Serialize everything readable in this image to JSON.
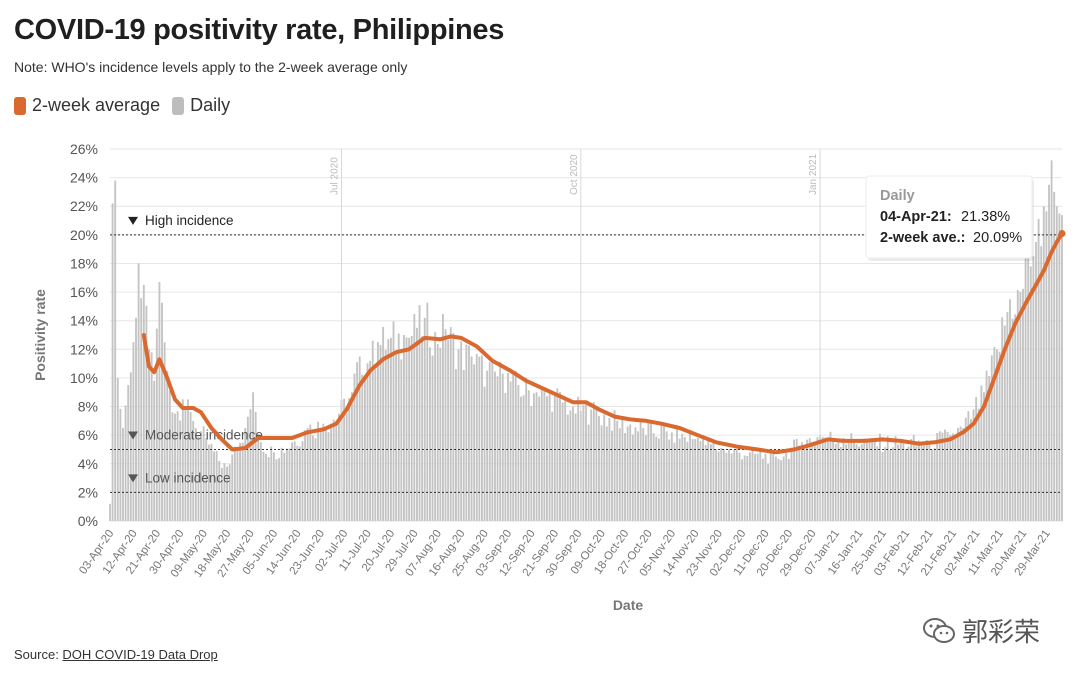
{
  "header": {
    "title": "COVID-19 positivity rate, Philippines",
    "subtitle": "Note: WHO's incidence levels apply to the 2-week average only"
  },
  "legend": [
    {
      "label": "2-week average",
      "color": "#d9692f"
    },
    {
      "label": "Daily",
      "color": "#bdbdbd"
    }
  ],
  "footer": {
    "prefix": "Source: ",
    "link_text": "DOH COVID-19 Data Drop"
  },
  "watermark": {
    "text": "郭彩荣",
    "icon": "wechat-icon"
  },
  "tooltip": {
    "heading": "Daily",
    "row1_label": "04-Apr-21:",
    "row1_value": "21.38%",
    "row2_label": "2-week ave.:",
    "row2_value": "20.09%"
  },
  "chart_data": {
    "type": "bar",
    "title": "COVID-19 positivity rate, Philippines",
    "xlabel": "Date",
    "ylabel": "Positivity rate",
    "ylim": [
      0,
      26
    ],
    "y_ticks": [
      "0%",
      "2%",
      "4%",
      "6%",
      "8%",
      "10%",
      "12%",
      "14%",
      "16%",
      "18%",
      "20%",
      "22%",
      "24%",
      "26%"
    ],
    "x_start": "2020-04-03",
    "x_end": "2021-04-04",
    "x_tick_labels": [
      "03-Apr-20",
      "12-Apr-20",
      "21-Apr-20",
      "30-Apr-20",
      "09-May-20",
      "18-May-20",
      "27-May-20",
      "05-Jun-20",
      "14-Jun-20",
      "23-Jun-20",
      "02-Jul-20",
      "11-Jul-20",
      "20-Jul-20",
      "29-Jul-20",
      "07-Aug-20",
      "16-Aug-20",
      "25-Aug-20",
      "03-Sep-20",
      "12-Sep-20",
      "21-Sep-20",
      "30-Sep-20",
      "09-Oct-20",
      "18-Oct-20",
      "27-Oct-20",
      "05-Nov-20",
      "14-Nov-20",
      "23-Nov-20",
      "02-Dec-20",
      "11-Dec-20",
      "20-Dec-20",
      "29-Dec-20",
      "07-Jan-21",
      "16-Jan-21",
      "25-Jan-21",
      "03-Feb-21",
      "12-Feb-21",
      "21-Feb-21",
      "02-Mar-21",
      "11-Mar-21",
      "20-Mar-21",
      "29-Mar-21"
    ],
    "vertical_markers": [
      {
        "label": "Jul 2020",
        "date": "2020-07-01"
      },
      {
        "label": "Oct 2020",
        "date": "2020-10-01"
      },
      {
        "label": "Jan 2021",
        "date": "2021-01-01"
      }
    ],
    "thresholds": [
      {
        "label": "High incidence",
        "value": 20
      },
      {
        "label": "Moderate incidence",
        "value": 5
      },
      {
        "label": "Low incidence",
        "value": 2
      }
    ],
    "series": [
      {
        "name": "Daily",
        "type": "bar",
        "color": "#bdbdbd",
        "anchors": [
          [
            "2020-04-03",
            1.2
          ],
          [
            "2020-04-04",
            22.2
          ],
          [
            "2020-04-05",
            23.8
          ],
          [
            "2020-04-06",
            10.0
          ],
          [
            "2020-04-08",
            6.5
          ],
          [
            "2020-04-10",
            9.5
          ],
          [
            "2020-04-13",
            14.2
          ],
          [
            "2020-04-14",
            18.0
          ],
          [
            "2020-04-16",
            16.5
          ],
          [
            "2020-04-18",
            12.0
          ],
          [
            "2020-04-20",
            9.8
          ],
          [
            "2020-04-22",
            16.7
          ],
          [
            "2020-04-25",
            10.5
          ],
          [
            "2020-04-28",
            7.5
          ],
          [
            "2020-05-01",
            8.5
          ],
          [
            "2020-05-05",
            7.0
          ],
          [
            "2020-05-10",
            5.8
          ],
          [
            "2020-05-15",
            4.2
          ],
          [
            "2020-05-18",
            3.8
          ],
          [
            "2020-05-21",
            5.2
          ],
          [
            "2020-05-25",
            6.5
          ],
          [
            "2020-05-28",
            9.0
          ],
          [
            "2020-05-31",
            5.5
          ],
          [
            "2020-06-05",
            4.8
          ],
          [
            "2020-06-12",
            5.5
          ],
          [
            "2020-06-18",
            6.5
          ],
          [
            "2020-06-24",
            6.8
          ],
          [
            "2020-06-30",
            7.5
          ],
          [
            "2020-07-05",
            9.0
          ],
          [
            "2020-07-08",
            11.5
          ],
          [
            "2020-07-12",
            11.2
          ],
          [
            "2020-07-15",
            12.5
          ],
          [
            "2020-07-20",
            12.8
          ],
          [
            "2020-07-25",
            13.0
          ],
          [
            "2020-07-30",
            13.5
          ],
          [
            "2020-08-02",
            14.2
          ],
          [
            "2020-08-06",
            13.2
          ],
          [
            "2020-08-10",
            13.4
          ],
          [
            "2020-08-15",
            12.0
          ],
          [
            "2020-08-20",
            11.5
          ],
          [
            "2020-08-26",
            10.5
          ],
          [
            "2020-09-01",
            10.3
          ],
          [
            "2020-09-07",
            9.5
          ],
          [
            "2020-09-14",
            9.0
          ],
          [
            "2020-09-21",
            8.8
          ],
          [
            "2020-09-28",
            8.0
          ],
          [
            "2020-10-05",
            7.8
          ],
          [
            "2020-10-15",
            7.0
          ],
          [
            "2020-10-25",
            6.5
          ],
          [
            "2020-11-05",
            6.2
          ],
          [
            "2020-11-15",
            5.8
          ],
          [
            "2020-11-25",
            5.0
          ],
          [
            "2020-12-05",
            4.8
          ],
          [
            "2020-12-15",
            4.5
          ],
          [
            "2020-12-25",
            5.5
          ],
          [
            "2021-01-01",
            6.0
          ],
          [
            "2021-01-10",
            5.8
          ],
          [
            "2021-01-20",
            5.6
          ],
          [
            "2021-02-01",
            5.5
          ],
          [
            "2021-02-12",
            5.6
          ],
          [
            "2021-02-20",
            6.0
          ],
          [
            "2021-02-25",
            6.5
          ],
          [
            "2021-03-01",
            7.8
          ],
          [
            "2021-03-05",
            9.0
          ],
          [
            "2021-03-10",
            12.0
          ],
          [
            "2021-03-15",
            15.5
          ],
          [
            "2021-03-19",
            16.0
          ],
          [
            "2021-03-22",
            18.5
          ],
          [
            "2021-03-25",
            19.5
          ],
          [
            "2021-03-28",
            22.0
          ],
          [
            "2021-03-30",
            23.5
          ],
          [
            "2021-03-31",
            25.2
          ],
          [
            "2021-04-01",
            23.0
          ],
          [
            "2021-04-02",
            22.0
          ],
          [
            "2021-04-03",
            21.5
          ],
          [
            "2021-04-04",
            21.38
          ]
        ]
      },
      {
        "name": "2-week average",
        "type": "line",
        "color": "#d9692f",
        "points": [
          [
            "2020-04-16",
            13.0
          ],
          [
            "2020-04-18",
            10.8
          ],
          [
            "2020-04-20",
            10.4
          ],
          [
            "2020-04-22",
            11.3
          ],
          [
            "2020-04-25",
            10.0
          ],
          [
            "2020-04-28",
            8.5
          ],
          [
            "2020-05-01",
            7.9
          ],
          [
            "2020-05-05",
            7.9
          ],
          [
            "2020-05-08",
            7.6
          ],
          [
            "2020-05-12",
            6.5
          ],
          [
            "2020-05-16",
            5.7
          ],
          [
            "2020-05-20",
            5.0
          ],
          [
            "2020-05-25",
            5.1
          ],
          [
            "2020-05-30",
            5.8
          ],
          [
            "2020-06-05",
            5.8
          ],
          [
            "2020-06-12",
            5.8
          ],
          [
            "2020-06-18",
            6.2
          ],
          [
            "2020-06-24",
            6.4
          ],
          [
            "2020-06-29",
            6.8
          ],
          [
            "2020-07-03",
            7.8
          ],
          [
            "2020-07-08",
            9.5
          ],
          [
            "2020-07-12",
            10.5
          ],
          [
            "2020-07-17",
            11.3
          ],
          [
            "2020-07-22",
            11.8
          ],
          [
            "2020-07-27",
            12.0
          ],
          [
            "2020-08-02",
            12.8
          ],
          [
            "2020-08-08",
            12.7
          ],
          [
            "2020-08-12",
            12.9
          ],
          [
            "2020-08-16",
            12.8
          ],
          [
            "2020-08-22",
            12.2
          ],
          [
            "2020-08-28",
            11.2
          ],
          [
            "2020-09-04",
            10.5
          ],
          [
            "2020-09-10",
            9.8
          ],
          [
            "2020-09-16",
            9.3
          ],
          [
            "2020-09-22",
            8.8
          ],
          [
            "2020-09-28",
            8.3
          ],
          [
            "2020-10-03",
            8.3
          ],
          [
            "2020-10-08",
            7.8
          ],
          [
            "2020-10-14",
            7.3
          ],
          [
            "2020-10-20",
            7.1
          ],
          [
            "2020-10-26",
            7.0
          ],
          [
            "2020-11-01",
            6.8
          ],
          [
            "2020-11-08",
            6.5
          ],
          [
            "2020-11-15",
            6.0
          ],
          [
            "2020-11-22",
            5.5
          ],
          [
            "2020-11-30",
            5.2
          ],
          [
            "2020-12-08",
            5.0
          ],
          [
            "2020-12-15",
            4.8
          ],
          [
            "2020-12-22",
            5.0
          ],
          [
            "2020-12-28",
            5.3
          ],
          [
            "2021-01-04",
            5.7
          ],
          [
            "2021-01-10",
            5.6
          ],
          [
            "2021-01-18",
            5.6
          ],
          [
            "2021-01-25",
            5.7
          ],
          [
            "2021-02-01",
            5.6
          ],
          [
            "2021-02-08",
            5.4
          ],
          [
            "2021-02-14",
            5.5
          ],
          [
            "2021-02-20",
            5.7
          ],
          [
            "2021-02-25",
            6.2
          ],
          [
            "2021-03-01",
            6.8
          ],
          [
            "2021-03-05",
            8.0
          ],
          [
            "2021-03-09",
            10.0
          ],
          [
            "2021-03-13",
            12.0
          ],
          [
            "2021-03-17",
            13.8
          ],
          [
            "2021-03-21",
            15.2
          ],
          [
            "2021-03-25",
            16.5
          ],
          [
            "2021-03-28",
            17.5
          ],
          [
            "2021-03-31",
            18.8
          ],
          [
            "2021-04-02",
            19.5
          ],
          [
            "2021-04-04",
            20.09
          ]
        ]
      }
    ]
  }
}
